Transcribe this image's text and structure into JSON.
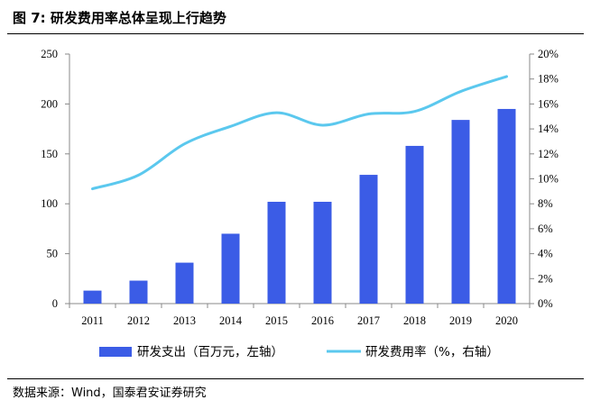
{
  "figure": {
    "title": "图 7: 研发费用率总体呈现上行趋势",
    "source": "数据来源：Wind，国泰君安证券研究"
  },
  "chart_data": {
    "type": "bar+line",
    "categories": [
      "2011",
      "2012",
      "2013",
      "2014",
      "2015",
      "2016",
      "2017",
      "2018",
      "2019",
      "2020"
    ],
    "series": [
      {
        "name": "研发支出（百万元，左轴）",
        "type": "bar",
        "axis": "left",
        "color": "#3B5CE6",
        "values": [
          13,
          23,
          41,
          70,
          102,
          102,
          129,
          158,
          184,
          195
        ]
      },
      {
        "name": "研发费用率（%，右轴）",
        "type": "line",
        "axis": "right",
        "color": "#5BC8EE",
        "values": [
          9.2,
          10.3,
          12.8,
          14.2,
          15.3,
          14.3,
          15.2,
          15.4,
          17.0,
          18.2
        ]
      }
    ],
    "left_axis": {
      "min": 0,
      "max": 250,
      "step": 50,
      "ticks": [
        "0",
        "50",
        "100",
        "150",
        "200",
        "250"
      ]
    },
    "right_axis": {
      "min": 0,
      "max": 20,
      "step": 2,
      "ticks": [
        "0%",
        "2%",
        "4%",
        "6%",
        "8%",
        "10%",
        "12%",
        "14%",
        "16%",
        "18%",
        "20%"
      ]
    },
    "legend_position": "bottom",
    "grid": false
  }
}
